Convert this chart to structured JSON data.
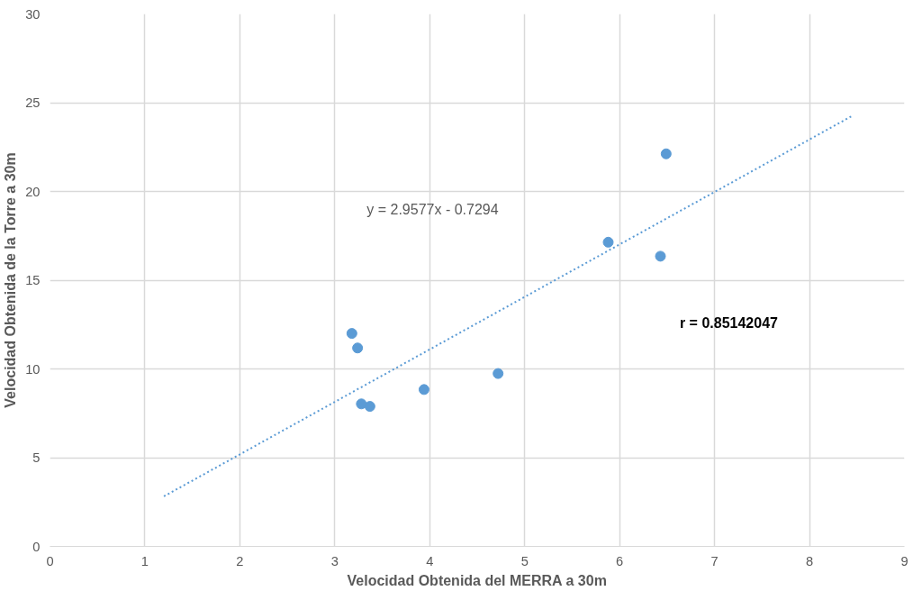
{
  "chart_data": {
    "type": "scatter",
    "xlabel": "Velocidad Obtenida del MERRA a 30m",
    "ylabel": "Velocidad Obtenida de la Torre a 30m",
    "x": [
      3.18,
      3.24,
      3.28,
      3.37,
      3.94,
      4.72,
      5.88,
      6.43,
      6.49
    ],
    "series": [
      {
        "color": "#5b9bd5",
        "values": [
          12.0,
          11.18,
          8.03,
          7.89,
          8.84,
          9.74,
          17.14,
          16.35,
          22.12
        ],
        "marker": "circle"
      },
      {
        "type": "line",
        "color": "#5b9bd5",
        "x": [
          1.2,
          8.45
        ],
        "values": [
          2.82,
          24.26
        ],
        "line_style": "dotted",
        "marker": "none"
      }
    ],
    "annotations": [
      "y = 2.9577x - 0.7294",
      "r = 0.85142047"
    ],
    "xlim": [
      0,
      9
    ],
    "ylim": [
      0,
      30
    ],
    "xticks": [
      0,
      1,
      2,
      3,
      4,
      5,
      6,
      7,
      8,
      9
    ],
    "yticks": [
      0,
      5,
      10,
      15,
      20,
      25,
      30
    ],
    "grid": true
  }
}
